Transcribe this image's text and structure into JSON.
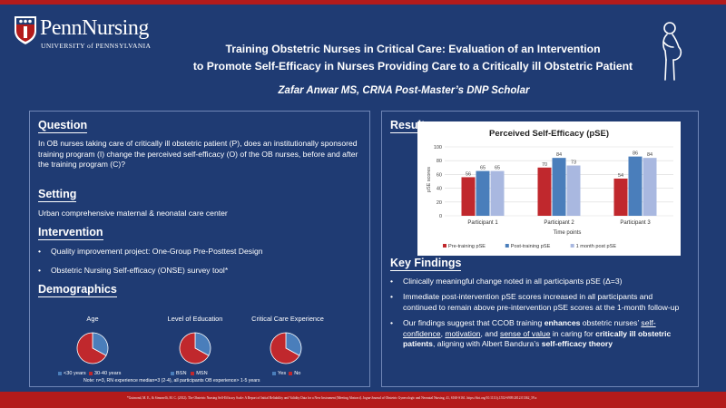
{
  "logo": {
    "brand": "PennNursing",
    "university": "UNIVERSITY of PENNSYLVANIA"
  },
  "title": {
    "line1": "Training Obstetric Nurses in Critical Care: Evaluation of an Intervention",
    "line2": "to Promote Self-Efficacy in Nurses Providing Care to a Critically ill Obstetric Patient"
  },
  "author": "Zafar Anwar MS, CRNA  Post-Master’s DNP Scholar",
  "question": {
    "heading": "Question",
    "text": "In OB nurses taking care of critically ill obstetric patient (P), does an institutionally sponsored training program (I) change the perceived self-efficacy (O) of the OB nurses, before and after the training program (C)?"
  },
  "setting": {
    "heading": "Setting",
    "text": "Urban comprehensive maternal & neonatal care center"
  },
  "intervention": {
    "heading": "Intervention",
    "items": [
      "Quality improvement project: One-Group Pre-Posttest Design",
      "Obstetric Nursing Self-efficacy (ONSE) survey tool*"
    ]
  },
  "demographics": {
    "heading": "Demographics",
    "charts": [
      {
        "label": "Age",
        "legend": [
          "<30 years",
          "30-40 years"
        ],
        "shares": [
          0.33,
          0.67
        ],
        "colors": [
          "#4a7ebb",
          "#c0282d"
        ]
      },
      {
        "label": "Level  of Education",
        "legend": [
          "BSN",
          "MSN"
        ],
        "shares": [
          0.33,
          0.67
        ],
        "colors": [
          "#4a7ebb",
          "#c0282d"
        ]
      },
      {
        "label": "Critical Care Experience",
        "legend": [
          "Yes",
          "No"
        ],
        "shares": [
          0.33,
          0.67
        ],
        "colors": [
          "#4a7ebb",
          "#c0282d"
        ]
      }
    ],
    "note": "Note: n=3, RN experience median=3 (2-4), all participants OB experience> 1-5 years"
  },
  "results": {
    "heading": "Results"
  },
  "chart_data": {
    "type": "bar",
    "title": "Perceived Self-Efficacy (pSE)",
    "xlabel": "Time points",
    "ylabel": "pSE scores",
    "ylim": [
      0,
      100
    ],
    "yticks": [
      0,
      20,
      40,
      60,
      80,
      100
    ],
    "categories": [
      "Participant 1",
      "Participant 2",
      "Participant 3"
    ],
    "series": [
      {
        "name": "Pre-training pSE",
        "values": [
          56,
          70,
          54
        ],
        "color": "#c0282d"
      },
      {
        "name": "Post-training pSE",
        "values": [
          65,
          84,
          86
        ],
        "color": "#4a7ebb"
      },
      {
        "name": "1 month post pSE",
        "values": [
          65,
          73,
          84
        ],
        "color": "#a9b8e0"
      }
    ],
    "grid": true,
    "legend": "bottom"
  },
  "key_findings": {
    "heading": "Key Findings",
    "item1": "Clinically meaningful change noted in all participants pSE (Δ=3)",
    "item2": "Immediate post-intervention pSE scores increased in all participants and continued to remain above pre-intervention pSE scores at the 1-month follow-up",
    "item3": {
      "t1": "Our findings suggest that CCOB training ",
      "b1": "enhances",
      "t2": " obstetric nurses’ ",
      "u1": "self-confidence",
      "t3": ", ",
      "u2": "motivation",
      "t4": ", and ",
      "u3": "sense of value",
      "t5": " in caring for ",
      "b2": "critically ill obstetric patients",
      "t6": ", aligning with Albert Bandura’s ",
      "b3": "self-efficacy theory"
    }
  },
  "footnote": "*Guimond, M. E., & Simonelli, M. C. (2012). The Obstetric Nursing Self-Efficacy Scale: A Report of Initial Reliability and Validity Data for a New Instrument [Meeting Abstract]. Jogna-Journal of Obstetric Gynecologic and Neonatal Nursing, 41, S160-S161. https://doi.org/10.1111/j.1552-6909.2012.01362_59.x"
}
